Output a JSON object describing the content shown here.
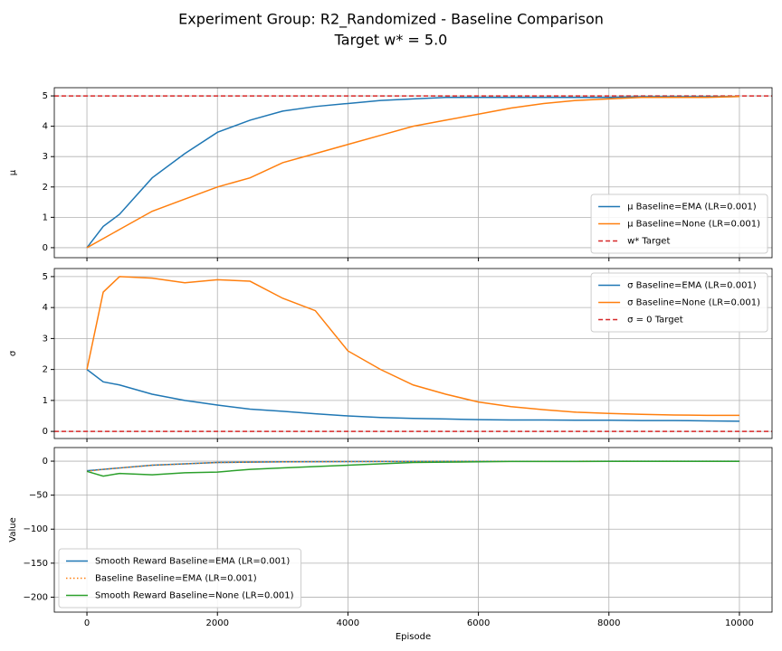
{
  "title": "Experiment Group: R2_Randomized - Baseline Comparison",
  "subtitle": "Target w* = 5.0",
  "chart_data": [
    {
      "type": "line",
      "ylabel": "μ",
      "legend": "lower right",
      "grid": true,
      "show_xtick_labels": false,
      "xlim": [
        -500,
        10500
      ],
      "xticks": [
        0,
        2000,
        4000,
        6000,
        8000,
        10000
      ],
      "ylim": [
        -0.33,
        5.27
      ],
      "yticks": [
        0,
        1,
        2,
        3,
        4,
        5
      ],
      "x": [
        0,
        250,
        500,
        1000,
        1500,
        2000,
        2500,
        3000,
        3500,
        4000,
        4500,
        5000,
        5500,
        6000,
        6500,
        7000,
        7500,
        8000,
        8500,
        9000,
        9500,
        10000
      ],
      "series": [
        {
          "name": "μ Baseline=EMA (LR=0.001)",
          "color": "#1f77b4",
          "linestyle": "solid",
          "values": [
            0,
            0.7,
            1.1,
            2.3,
            3.1,
            3.8,
            4.2,
            4.5,
            4.65,
            4.75,
            4.85,
            4.9,
            4.95,
            4.95,
            4.95,
            4.95,
            4.95,
            4.95,
            4.97,
            4.97,
            4.97,
            4.98
          ]
        },
        {
          "name": "μ Baseline=None (LR=0.001)",
          "color": "#ff7f0e",
          "linestyle": "solid",
          "values": [
            0,
            0.3,
            0.6,
            1.2,
            1.6,
            2.0,
            2.3,
            2.8,
            3.1,
            3.4,
            3.7,
            4.0,
            4.2,
            4.4,
            4.6,
            4.75,
            4.85,
            4.9,
            4.95,
            4.95,
            4.95,
            4.98
          ]
        }
      ],
      "hlines": [
        {
          "y": 5,
          "color": "#d62728",
          "label": "w* Target"
        }
      ]
    },
    {
      "type": "line",
      "ylabel": "σ",
      "legend": "upper right",
      "grid": true,
      "show_xtick_labels": false,
      "xlim": [
        -500,
        10500
      ],
      "xticks": [
        0,
        2000,
        4000,
        6000,
        8000,
        10000
      ],
      "ylim": [
        -0.23,
        5.26
      ],
      "yticks": [
        0,
        1,
        2,
        3,
        4,
        5
      ],
      "x": [
        0,
        250,
        500,
        1000,
        1500,
        2000,
        2500,
        3000,
        3500,
        4000,
        4500,
        5000,
        5500,
        6000,
        6500,
        7000,
        7500,
        8000,
        8500,
        9000,
        9500,
        10000
      ],
      "series": [
        {
          "name": "σ Baseline=EMA (LR=0.001)",
          "color": "#1f77b4",
          "linestyle": "solid",
          "values": [
            2.0,
            1.6,
            1.5,
            1.2,
            1.0,
            0.85,
            0.72,
            0.65,
            0.57,
            0.5,
            0.45,
            0.42,
            0.4,
            0.38,
            0.37,
            0.37,
            0.36,
            0.36,
            0.35,
            0.35,
            0.34,
            0.33
          ]
        },
        {
          "name": "σ Baseline=None (LR=0.001)",
          "color": "#ff7f0e",
          "linestyle": "solid",
          "values": [
            2.0,
            4.5,
            5.0,
            4.95,
            4.8,
            4.9,
            4.85,
            4.3,
            3.9,
            2.6,
            2.0,
            1.5,
            1.2,
            0.95,
            0.8,
            0.7,
            0.62,
            0.58,
            0.55,
            0.53,
            0.52,
            0.52
          ]
        }
      ],
      "hlines": [
        {
          "y": 0,
          "color": "#d62728",
          "label": "σ = 0 Target"
        }
      ]
    },
    {
      "type": "line",
      "ylabel": "Value",
      "xlabel": "Episode",
      "legend": "lower left",
      "grid": true,
      "show_xtick_labels": true,
      "xlim": [
        -500,
        10500
      ],
      "xticks": [
        0,
        2000,
        4000,
        6000,
        8000,
        10000
      ],
      "ylim": [
        -222,
        20
      ],
      "yticks": [
        0,
        {
          "value": -50,
          "label": "−50"
        },
        {
          "value": -100,
          "label": "−100"
        },
        {
          "value": -150,
          "label": "−150"
        },
        {
          "value": -200,
          "label": "−200"
        }
      ],
      "x": [
        0,
        250,
        500,
        1000,
        1500,
        2000,
        2500,
        3000,
        3500,
        4000,
        4500,
        5000,
        5500,
        6000,
        6500,
        7000,
        7500,
        8000,
        8500,
        9000,
        9500,
        10000
      ],
      "series": [
        {
          "name": "Smooth Reward Baseline=EMA (LR=0.001)",
          "color": "#1f77b4",
          "linestyle": "solid",
          "values": [
            -14,
            -12,
            -10,
            -6,
            -4,
            -2,
            -1.5,
            -1,
            -0.8,
            -0.6,
            -0.5,
            -0.4,
            -0.3,
            -0.3,
            -0.2,
            -0.2,
            -0.2,
            -0.1,
            -0.1,
            -0.1,
            -0.1,
            -0.1
          ]
        },
        {
          "name": "Baseline Baseline=EMA (LR=0.001)",
          "color": "#ff7f0e",
          "linestyle": "dotted",
          "values": [
            -15,
            -12,
            -10,
            -6,
            -4,
            -2,
            -1.5,
            -1,
            -0.8,
            -0.6,
            -0.5,
            -0.4,
            -0.3,
            -0.3,
            -0.2,
            -0.2,
            -0.2,
            -0.1,
            -0.1,
            -0.1,
            -0.1,
            -0.1
          ]
        },
        {
          "name": "Smooth Reward Baseline=None (LR=0.001)",
          "color": "#2ca02c",
          "linestyle": "solid",
          "values": [
            -15,
            -22,
            -18,
            -20,
            -17,
            -16,
            -12,
            -10,
            -8,
            -6,
            -4,
            -2,
            -1.5,
            -1,
            -0.5,
            -0.5,
            -0.4,
            -0.3,
            -0.3,
            -0.2,
            -0.2,
            -0.2
          ]
        }
      ],
      "hlines": []
    }
  ]
}
